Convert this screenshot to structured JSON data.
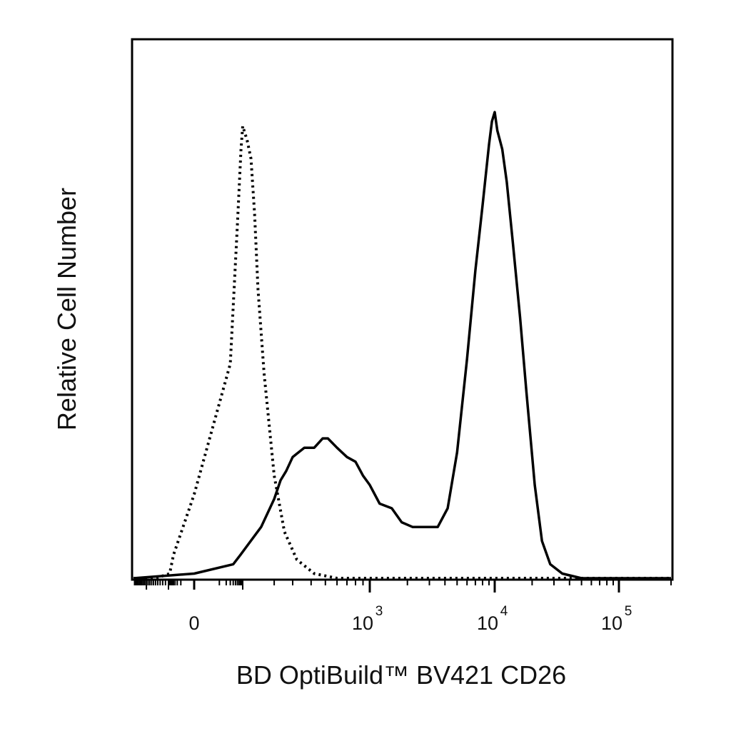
{
  "chart_data": {
    "type": "line",
    "xlabel": "BD OptiBuild™ BV421 CD26",
    "ylabel": "Relative Cell Number",
    "x_scale": "biexponential",
    "xlim": [
      -300,
      200000
    ],
    "ylim": [
      0,
      100
    ],
    "grid": false,
    "legend": "none",
    "x_ticks": [
      {
        "value": 0,
        "label": "0",
        "exp": ""
      },
      {
        "value": 1000,
        "label": "10",
        "exp": "3"
      },
      {
        "value": 10000,
        "label": "10",
        "exp": "4"
      },
      {
        "value": 100000,
        "label": "10",
        "exp": "5"
      }
    ],
    "series": [
      {
        "style": "dotted",
        "x": [
          -300,
          -150,
          -80,
          -40,
          0,
          30,
          60,
          85,
          100,
          110,
          120,
          130,
          140,
          160,
          200,
          250,
          320,
          420,
          600,
          1000,
          2000,
          10000,
          200000
        ],
        "y": [
          0,
          0,
          1,
          5,
          18,
          46,
          76,
          92,
          97,
          94,
          90,
          78,
          62,
          44,
          22,
          10,
          4,
          1,
          0,
          0,
          0,
          0,
          0
        ]
      },
      {
        "style": "solid",
        "x": [
          -300,
          0,
          40,
          80,
          150,
          200,
          230,
          260,
          300,
          360,
          420,
          480,
          520,
          600,
          700,
          800,
          900,
          1000,
          1200,
          1500,
          1800,
          2200,
          2800,
          3500,
          4200,
          5000,
          6000,
          7000,
          8000,
          9000,
          9500,
          10000,
          10500,
          11000,
          11500,
          12500,
          14000,
          16000,
          18000,
          21000,
          24000,
          28000,
          35000,
          50000,
          200000
        ],
        "y": [
          0,
          1,
          3,
          5,
          11,
          17,
          21,
          23,
          26,
          28,
          28,
          30,
          30,
          28,
          26,
          25,
          22,
          20,
          16,
          15,
          12,
          11,
          11,
          11,
          15,
          27,
          47,
          66,
          80,
          93,
          98,
          100,
          96,
          94,
          92,
          85,
          72,
          56,
          40,
          20,
          8,
          3,
          1,
          0,
          0
        ]
      }
    ]
  }
}
